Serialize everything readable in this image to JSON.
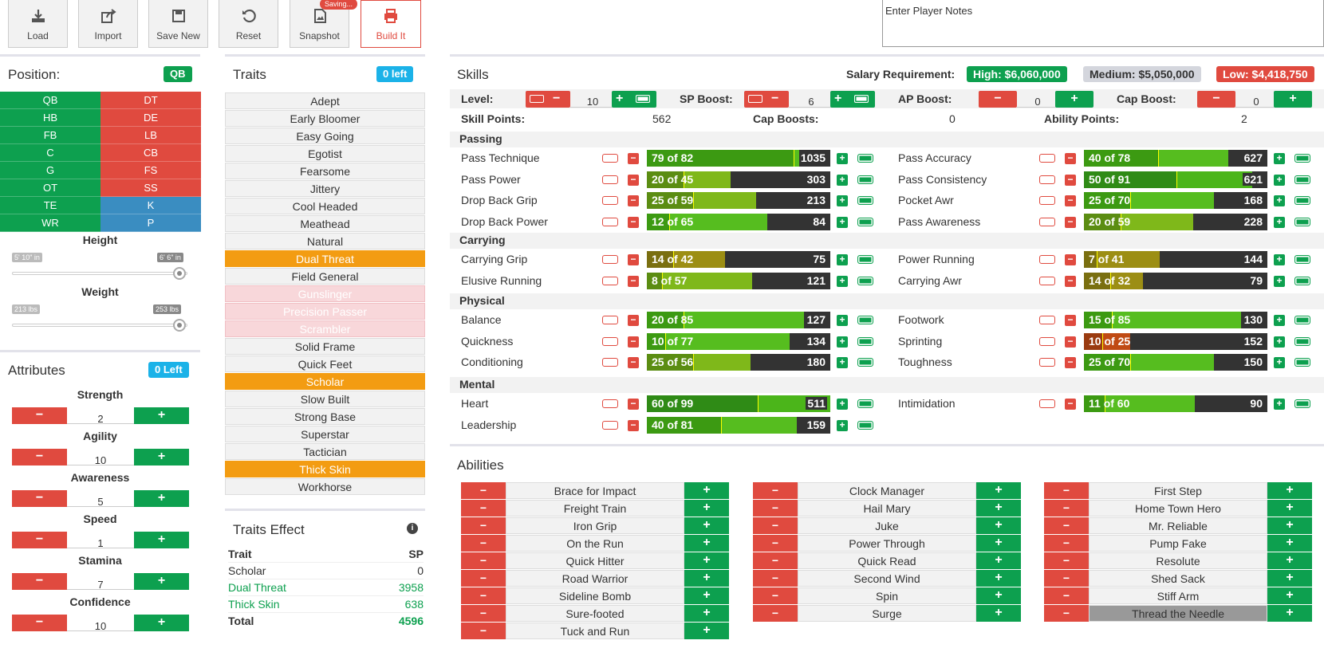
{
  "toolbar": {
    "buttons": [
      {
        "label": "Load",
        "icon": "download-icon"
      },
      {
        "label": "Import",
        "icon": "share-icon"
      },
      {
        "label": "Save New",
        "icon": "save-icon"
      },
      {
        "label": "Reset",
        "icon": "reset-icon"
      },
      {
        "label": "Snapshot",
        "icon": "image-icon"
      },
      {
        "label": "Build It",
        "icon": "print-icon"
      }
    ],
    "saving_badge": "Saving...",
    "notes_placeholder": "Enter Player Notes"
  },
  "position": {
    "title": "Position:",
    "selected": "QB",
    "offense": [
      "QB",
      "HB",
      "FB",
      "C",
      "G",
      "OT",
      "TE",
      "WR"
    ],
    "defense": [
      "DT",
      "DE",
      "LB",
      "CB",
      "FS",
      "SS",
      "K",
      "P"
    ]
  },
  "height": {
    "label": "Height",
    "min": "5' 10\" in",
    "max": "6' 6\" in"
  },
  "weight": {
    "label": "Weight",
    "min": "213 lbs",
    "max": "253 lbs"
  },
  "attributes": {
    "title": "Attributes",
    "badge": "0 Left",
    "items": [
      {
        "label": "Strength",
        "value": "2"
      },
      {
        "label": "Agility",
        "value": "10"
      },
      {
        "label": "Awareness",
        "value": "5"
      },
      {
        "label": "Speed",
        "value": "1"
      },
      {
        "label": "Stamina",
        "value": "7"
      },
      {
        "label": "Confidence",
        "value": "10"
      }
    ]
  },
  "traits": {
    "title": "Traits",
    "badge": "0 left",
    "items": [
      {
        "label": "Adept",
        "state": "normal"
      },
      {
        "label": "Early Bloomer",
        "state": "normal"
      },
      {
        "label": "Easy Going",
        "state": "normal"
      },
      {
        "label": "Egotist",
        "state": "normal"
      },
      {
        "label": "Fearsome",
        "state": "normal"
      },
      {
        "label": "Jittery",
        "state": "normal"
      },
      {
        "label": "Cool Headed",
        "state": "normal"
      },
      {
        "label": "Meathead",
        "state": "normal"
      },
      {
        "label": "Natural",
        "state": "normal"
      },
      {
        "label": "Dual Threat",
        "state": "selected"
      },
      {
        "label": "Field General",
        "state": "normal"
      },
      {
        "label": "Gunslinger",
        "state": "disabled"
      },
      {
        "label": "Precision Passer",
        "state": "disabled"
      },
      {
        "label": "Scrambler",
        "state": "disabled"
      },
      {
        "label": "Solid Frame",
        "state": "normal"
      },
      {
        "label": "Quick Feet",
        "state": "normal"
      },
      {
        "label": "Scholar",
        "state": "selected"
      },
      {
        "label": "Slow Built",
        "state": "normal"
      },
      {
        "label": "Strong Base",
        "state": "normal"
      },
      {
        "label": "Superstar",
        "state": "normal"
      },
      {
        "label": "Tactician",
        "state": "normal"
      },
      {
        "label": "Thick Skin",
        "state": "selected"
      },
      {
        "label": "Workhorse",
        "state": "normal"
      }
    ]
  },
  "traits_effect": {
    "title": "Traits Effect",
    "col_trait": "Trait",
    "col_sp": "SP",
    "rows": [
      {
        "trait": "Scholar",
        "sp": "0",
        "color": "#333333"
      },
      {
        "trait": "Dual Threat",
        "sp": "3958",
        "color": "#0da04f"
      },
      {
        "trait": "Thick Skin",
        "sp": "638",
        "color": "#0da04f"
      }
    ],
    "total_label": "Total",
    "total_value": "4596"
  },
  "skills": {
    "title": "Skills",
    "salary_label": "Salary Requirement:",
    "salary_high": "High: $6,060,000",
    "salary_medium": "Medium: $5,050,000",
    "salary_low": "Low: $4,418,750",
    "level": {
      "label": "Level:",
      "value": "10"
    },
    "sp_boost": {
      "label": "SP Boost:",
      "value": "6"
    },
    "ap_boost": {
      "label": "AP Boost:",
      "value": "0"
    },
    "cap_boost": {
      "label": "Cap Boost:",
      "value": "0"
    },
    "skill_points": {
      "label": "Skill Points:",
      "value": "562"
    },
    "cap_boosts": {
      "label": "Cap Boosts:",
      "value": "0"
    },
    "ability_points": {
      "label": "Ability Points:",
      "value": "2"
    },
    "categories": [
      {
        "name": "Passing",
        "left": [
          {
            "name": "Pass Technique",
            "text": "79 of 82",
            "value": "1035",
            "level": 79,
            "cap": 82
          },
          {
            "name": "Pass Power",
            "text": "20 of 45",
            "value": "303",
            "level": 20,
            "cap": 45
          },
          {
            "name": "Drop Back Grip",
            "text": "25 of 59",
            "value": "213",
            "level": 25,
            "cap": 59
          },
          {
            "name": "Drop Back Power",
            "text": "12 of 65",
            "value": "84",
            "level": 12,
            "cap": 65
          }
        ],
        "right": [
          {
            "name": "Pass Accuracy",
            "text": "40 of 78",
            "value": "627",
            "level": 40,
            "cap": 78
          },
          {
            "name": "Pass Consistency",
            "text": "50 of 91",
            "value": "621",
            "level": 50,
            "cap": 91
          },
          {
            "name": "Pocket Awr",
            "text": "25 of 70",
            "value": "168",
            "level": 25,
            "cap": 70
          },
          {
            "name": "Pass Awareness",
            "text": "20 of 59",
            "value": "228",
            "level": 20,
            "cap": 59
          }
        ]
      },
      {
        "name": "Carrying",
        "left": [
          {
            "name": "Carrying Grip",
            "text": "14 of 42",
            "value": "75",
            "level": 14,
            "cap": 42
          },
          {
            "name": "Elusive Running",
            "text": "8 of 57",
            "value": "121",
            "level": 8,
            "cap": 57
          }
        ],
        "right": [
          {
            "name": "Power Running",
            "text": "7 of 41",
            "value": "144",
            "level": 7,
            "cap": 41
          },
          {
            "name": "Carrying Awr",
            "text": "14 of 32",
            "value": "79",
            "level": 14,
            "cap": 32
          }
        ]
      },
      {
        "name": "Physical",
        "left": [
          {
            "name": "Balance",
            "text": "20 of 85",
            "value": "127",
            "level": 20,
            "cap": 85
          },
          {
            "name": "Quickness",
            "text": "10 of 77",
            "value": "134",
            "level": 10,
            "cap": 77
          },
          {
            "name": "Conditioning",
            "text": "25 of 56",
            "value": "180",
            "level": 25,
            "cap": 56
          }
        ],
        "right": [
          {
            "name": "Footwork",
            "text": "15 of 85",
            "value": "130",
            "level": 15,
            "cap": 85
          },
          {
            "name": "Sprinting",
            "text": "10 of 25",
            "value": "152",
            "level": 10,
            "cap": 25
          },
          {
            "name": "Toughness",
            "text": "25 of 70",
            "value": "150",
            "level": 25,
            "cap": 70
          }
        ]
      },
      {
        "name": "Mental",
        "left": [
          {
            "name": "Heart",
            "text": "60 of 99",
            "value": "511",
            "level": 60,
            "cap": 99
          },
          {
            "name": "Leadership",
            "text": "40 of 81",
            "value": "159",
            "level": 40,
            "cap": 81
          }
        ],
        "right": [
          {
            "name": "Intimidation",
            "text": "11 of 60",
            "value": "90",
            "level": 11,
            "cap": 60
          }
        ]
      }
    ]
  },
  "abilities": {
    "title": "Abilities",
    "columns": [
      [
        "Brace for Impact",
        "Freight Train",
        "Iron Grip",
        "On the Run",
        "Quick Hitter",
        "Road Warrior",
        "Sideline Bomb",
        "Sure-footed",
        "Tuck and Run"
      ],
      [
        "Clock Manager",
        "Hail Mary",
        "Juke",
        "Power Through",
        "Quick Read",
        "Second Wind",
        "Spin",
        "Surge"
      ],
      [
        "First Step",
        "Home Town Hero",
        "Mr. Reliable",
        "Pump Fake",
        "Resolute",
        "Shed Sack",
        "Stiff Arm",
        "Thread the Needle"
      ]
    ],
    "highlighted": "Thread the Needle"
  },
  "colors": {
    "green": "#0da04f",
    "red": "#e04a3f",
    "orange": "#f39c12",
    "blue": "#3a8dc1",
    "cyan": "#1bb2e8"
  }
}
